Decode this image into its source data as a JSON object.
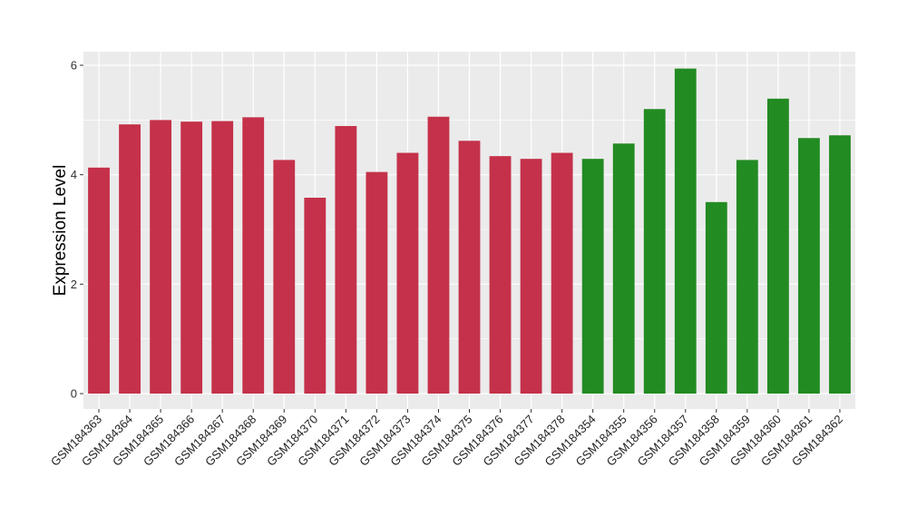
{
  "chart_data": {
    "type": "bar",
    "title": "",
    "xlabel": "",
    "ylabel": "Expression Level",
    "ylim": [
      0,
      6.2
    ],
    "yticks": [
      0,
      2,
      4,
      6
    ],
    "grid": true,
    "legend": "none",
    "colors": {
      "group_a": "#C5314A",
      "group_b": "#228B22",
      "panel": "#EBEBEB",
      "grid": "#FFFFFF"
    },
    "categories": [
      "GSM184363",
      "GSM184364",
      "GSM184365",
      "GSM184366",
      "GSM184367",
      "GSM184368",
      "GSM184369",
      "GSM184370",
      "GSM184371",
      "GSM184372",
      "GSM184373",
      "GSM184374",
      "GSM184375",
      "GSM184376",
      "GSM184377",
      "GSM184378",
      "GSM184354",
      "GSM184355",
      "GSM184356",
      "GSM184357",
      "GSM184358",
      "GSM184359",
      "GSM184360",
      "GSM184361",
      "GSM184362"
    ],
    "values": [
      4.13,
      4.92,
      5.0,
      4.97,
      4.98,
      5.05,
      4.27,
      3.58,
      4.89,
      4.05,
      4.4,
      5.06,
      4.62,
      4.34,
      4.29,
      4.4,
      4.29,
      4.57,
      5.2,
      5.94,
      3.5,
      4.27,
      5.39,
      4.67,
      4.72
    ],
    "groups": [
      "a",
      "a",
      "a",
      "a",
      "a",
      "a",
      "a",
      "a",
      "a",
      "a",
      "a",
      "a",
      "a",
      "a",
      "a",
      "a",
      "b",
      "b",
      "b",
      "b",
      "b",
      "b",
      "b",
      "b",
      "b"
    ]
  }
}
